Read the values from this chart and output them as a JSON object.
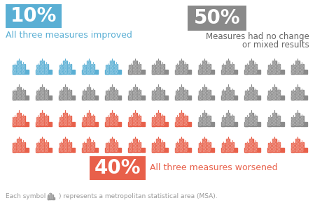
{
  "bg_color": "#ffffff",
  "blue_color": "#5aafd4",
  "gray_color": "#8a8a8a",
  "red_color": "#e8604a",
  "blue_pct": "10%",
  "blue_label": "All three measures improved",
  "gray_pct": "50%",
  "gray_label1": "Measures had no change",
  "gray_label2": "or mixed results",
  "red_pct": "40%",
  "red_label": "All three measures worsened",
  "footer1": "Each symbol (     ) represents a metropolitan statistical area (MSA).",
  "n_blue": 5,
  "n_gray": 26,
  "n_red": 21,
  "n_total": 52,
  "cols": 13,
  "rows": 4
}
